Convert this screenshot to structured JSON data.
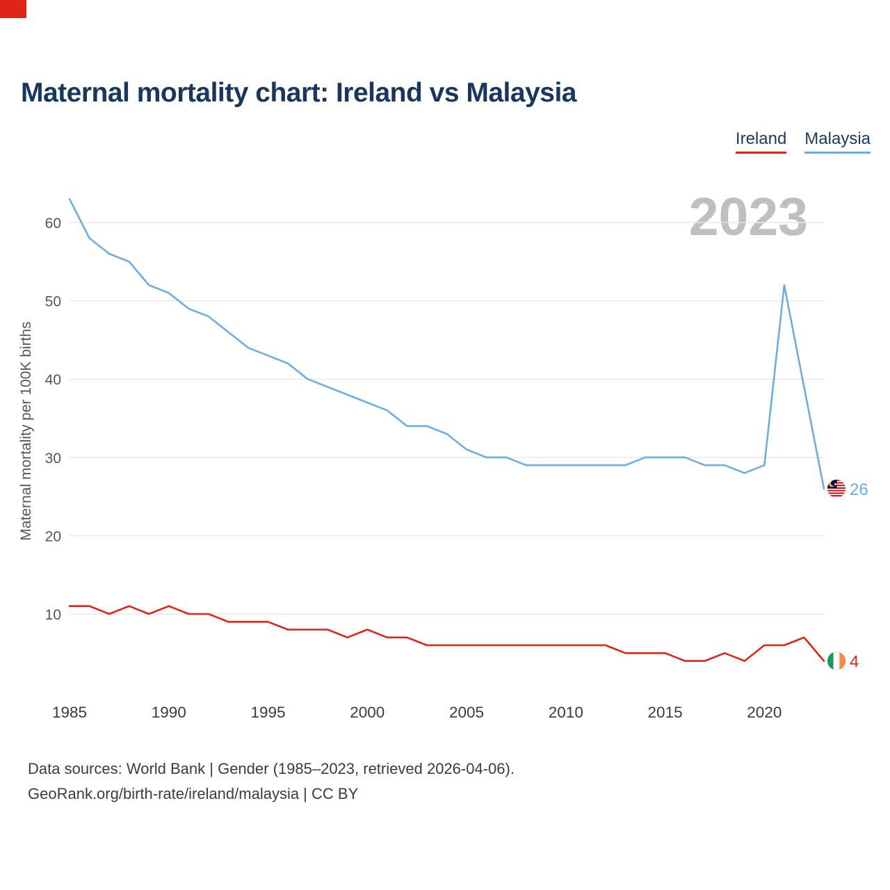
{
  "title": "Maternal mortality chart: Ireland vs Malaysia",
  "watermark": "2023",
  "legend": [
    {
      "label": "Ireland",
      "color": "#e02418"
    },
    {
      "label": "Malaysia",
      "color": "#6fadde"
    }
  ],
  "footer": {
    "line1": "Data sources: World Bank | Gender (1985–2023, retrieved 2026-04-06).",
    "line2": "GeoRank.org/birth-rate/ireland/malaysia | CC BY"
  },
  "chart_data": {
    "type": "line",
    "title": "Maternal mortality chart: Ireland vs Malaysia",
    "xlabel": "",
    "ylabel": "Maternal mortality per 100K births",
    "x": [
      1985,
      1986,
      1987,
      1988,
      1989,
      1990,
      1991,
      1992,
      1993,
      1994,
      1995,
      1996,
      1997,
      1998,
      1999,
      2000,
      2001,
      2002,
      2003,
      2004,
      2005,
      2006,
      2007,
      2008,
      2009,
      2010,
      2011,
      2012,
      2013,
      2014,
      2015,
      2016,
      2017,
      2018,
      2019,
      2020,
      2021,
      2022,
      2023
    ],
    "series": [
      {
        "name": "Malaysia",
        "color": "#6fadde",
        "flag": "malaysia",
        "end_label": "26",
        "values": [
          63,
          58,
          56,
          55,
          52,
          51,
          49,
          48,
          46,
          44,
          43,
          42,
          40,
          39,
          38,
          37,
          36,
          34,
          34,
          33,
          31,
          30,
          30,
          29,
          29,
          29,
          29,
          29,
          29,
          30,
          30,
          30,
          29,
          29,
          28,
          29,
          52,
          39,
          26
        ]
      },
      {
        "name": "Ireland",
        "color": "#e02418",
        "flag": "ireland",
        "end_label": "4",
        "values": [
          11,
          11,
          10,
          11,
          10,
          11,
          10,
          10,
          9,
          9,
          9,
          8,
          8,
          8,
          7,
          8,
          7,
          7,
          6,
          6,
          6,
          6,
          6,
          6,
          6,
          6,
          6,
          6,
          5,
          5,
          5,
          4,
          4,
          5,
          4,
          6,
          6,
          7,
          4
        ]
      }
    ],
    "xticks": [
      1985,
      1990,
      1995,
      2000,
      2005,
      2010,
      2015,
      2020
    ],
    "yticks": [
      10,
      20,
      30,
      40,
      50,
      60
    ],
    "ylim": [
      2,
      64
    ],
    "grid": "horizontal",
    "legend_position": "top-right"
  }
}
